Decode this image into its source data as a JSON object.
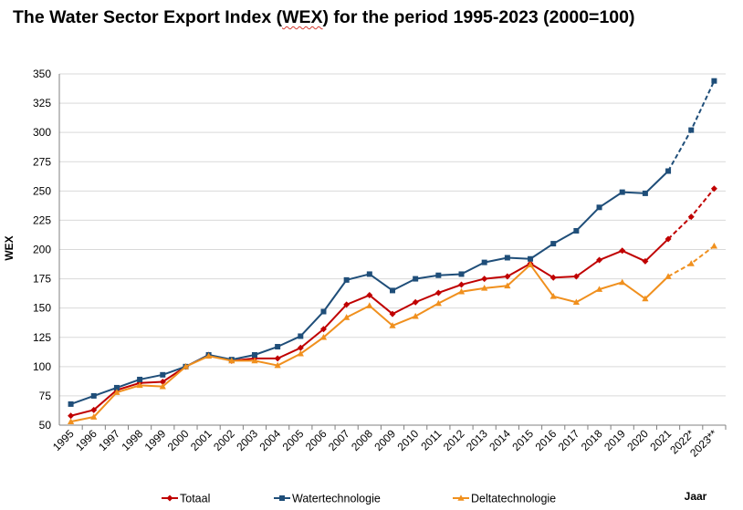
{
  "chart_data": {
    "type": "line",
    "title_parts": [
      "The Water Sector Export Index (",
      "WEX",
      ") for the period 1995-2023 (2000=100)"
    ],
    "xlabel": "Jaar",
    "ylabel": "WEX",
    "ylim": [
      50,
      350
    ],
    "yticks": [
      50,
      75,
      100,
      125,
      150,
      175,
      200,
      225,
      250,
      275,
      300,
      325,
      350
    ],
    "grid": true,
    "legend_position": "bottom",
    "categories": [
      "1995",
      "1996",
      "1997",
      "1998",
      "1999",
      "2000",
      "2001",
      "2002",
      "2003",
      "2004",
      "2005",
      "2006",
      "2007",
      "2008",
      "2009",
      "2010",
      "2011",
      "2012",
      "2013",
      "2014",
      "2015",
      "2016",
      "2017",
      "2018",
      "2019",
      "2020",
      "2021",
      "2022*",
      "2023**"
    ],
    "dashed_from_index": 26,
    "series": [
      {
        "name": "Totaal",
        "color": "#c00000",
        "marker": "diamond",
        "values": [
          58,
          63,
          80,
          86,
          87,
          100,
          110,
          105,
          107,
          107,
          116,
          132,
          153,
          161,
          145,
          155,
          163,
          170,
          175,
          177,
          188,
          176,
          177,
          191,
          199,
          190,
          209,
          228,
          252
        ]
      },
      {
        "name": "Watertechnologie",
        "color": "#1f4e79",
        "marker": "square",
        "values": [
          68,
          75,
          82,
          89,
          93,
          100,
          110,
          106,
          110,
          117,
          126,
          147,
          174,
          179,
          165,
          175,
          178,
          179,
          189,
          193,
          192,
          205,
          216,
          236,
          249,
          248,
          267,
          302,
          344
        ]
      },
      {
        "name": "Deltatechnologie",
        "color": "#f0901e",
        "marker": "triangle",
        "values": [
          53,
          57,
          78,
          84,
          83,
          100,
          109,
          105,
          105,
          101,
          111,
          125,
          142,
          152,
          135,
          143,
          154,
          164,
          167,
          169,
          187,
          160,
          155,
          166,
          172,
          158,
          177,
          188,
          203
        ]
      }
    ]
  }
}
